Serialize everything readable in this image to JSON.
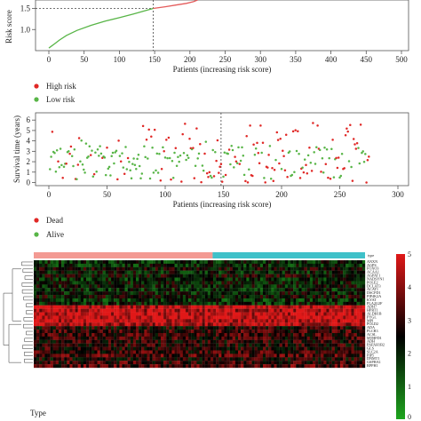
{
  "chart_data": [
    {
      "type": "line",
      "ylabel": "Risk score",
      "xlabel": "Patients (increasing risk score)",
      "x_ticks": [
        0,
        50,
        100,
        150,
        200,
        250,
        300,
        350,
        400,
        450,
        500
      ],
      "y_ticks": [
        "1.0",
        "1.5"
      ],
      "ylim": [
        0.5,
        1.7
      ],
      "cutoff_x": 148,
      "cutoff_y": 1.5,
      "series": [
        {
          "name": "Low risk",
          "color": "#58b547",
          "points": [
            [
              0,
              0.56
            ],
            [
              3,
              0.6
            ],
            [
              8,
              0.66
            ],
            [
              15,
              0.75
            ],
            [
              25,
              0.86
            ],
            [
              40,
              0.98
            ],
            [
              60,
              1.1
            ],
            [
              80,
              1.2
            ],
            [
              100,
              1.28
            ],
            [
              120,
              1.37
            ],
            [
              135,
              1.44
            ],
            [
              148,
              1.5
            ]
          ]
        },
        {
          "name": "High risk",
          "color": "#e45b5b",
          "points": [
            [
              148,
              1.5
            ],
            [
              165,
              1.54
            ],
            [
              180,
              1.58
            ],
            [
              195,
              1.62
            ],
            [
              205,
              1.66
            ],
            [
              211,
              1.7
            ]
          ]
        }
      ],
      "legend": {
        "position": "below",
        "items": [
          {
            "label": "High risk",
            "color": "#e02826"
          },
          {
            "label": "Low risk",
            "color": "#58b547"
          }
        ]
      }
    },
    {
      "type": "scatter",
      "ylabel": "Survival time (years)",
      "xlabel": "Patients (increasing risk score)",
      "x_ticks": [
        0,
        50,
        100,
        150,
        200,
        250,
        300
      ],
      "y_ticks": [
        0,
        1,
        2,
        3,
        4,
        5,
        6
      ],
      "ylim": [
        -0.3,
        6.7
      ],
      "cutoff_x": 148,
      "series": [
        {
          "name": "Dead",
          "color": "#e02826"
        },
        {
          "name": "Alive",
          "color": "#58b547"
        }
      ],
      "legend": {
        "position": "below",
        "items": [
          {
            "label": "Dead",
            "color": "#e02826"
          },
          {
            "label": "Alive",
            "color": "#58b547"
          }
        ]
      }
    },
    {
      "type": "heatmap",
      "color_scale": {
        "min": 0,
        "max": 5,
        "ticks": [
          0,
          1,
          2,
          3,
          4,
          5
        ],
        "colors": [
          "#1ea51e",
          "#000000",
          "#e01818"
        ]
      },
      "type_bar_label": "type",
      "type_bar_colors": [
        "#f39a93",
        "#3fc1c9"
      ],
      "type_bar_split_fraction": 0.54,
      "genes": [
        "ANXN",
        "AGPS",
        "FOXO3",
        "ACAA1",
        "AGPAT1",
        "NADSYN1",
        "POLE2",
        "DCLAT3",
        "ACAT1",
        "DSCPD1",
        "PIP4K2A",
        "KYAT",
        "PLA2G2F",
        "ADH7",
        "HPRT1",
        "ALDH1B",
        "PYGL",
        "MPI",
        "POLD2",
        "ADA",
        "PLCB3",
        "ACSL",
        "MTHFD1",
        "ADH",
        "PAFAH1B2",
        "GLS",
        "SLC2A",
        "PIP5",
        "DNMT1",
        "GSPHA1",
        "RPPH1"
      ],
      "bottom_label": "Type"
    }
  ]
}
